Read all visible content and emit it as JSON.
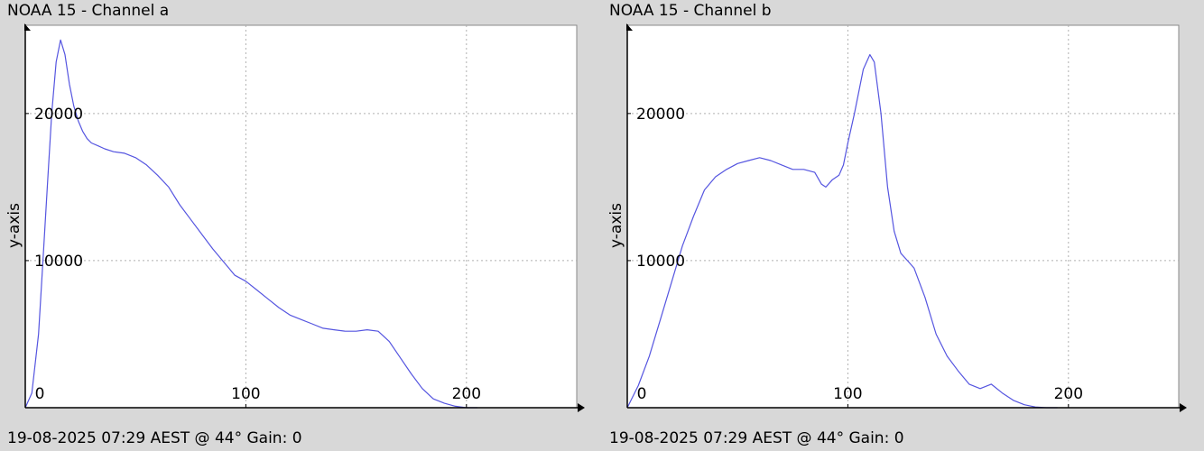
{
  "chart_data": [
    {
      "type": "line",
      "title": "NOAA 15 - Channel a",
      "footer": "19-08-2025 07:29 AEST @ 44° Gain: 0",
      "ylabel": "y-axis",
      "xlim": [
        0,
        250
      ],
      "ylim": [
        0,
        26000
      ],
      "xticks": [
        0,
        100,
        200
      ],
      "yticks": [
        10000,
        20000
      ],
      "xtick_labels": [
        "0",
        "100",
        "200"
      ],
      "ytick_labels": [
        "10000",
        "20000"
      ],
      "grid": true,
      "line_color": "#5555e0",
      "series": [
        {
          "x": [
            0,
            3,
            6,
            8,
            10,
            12,
            14,
            16,
            18,
            20,
            22,
            24,
            26,
            28,
            30,
            33,
            36,
            40,
            45,
            50,
            55,
            60,
            65,
            70,
            75,
            80,
            85,
            90,
            95,
            100,
            105,
            110,
            115,
            120,
            125,
            130,
            135,
            140,
            145,
            150,
            155,
            160,
            165,
            170,
            175,
            180,
            185,
            190,
            195,
            200,
            205
          ],
          "y": [
            0,
            1000,
            5000,
            10000,
            15000,
            20000,
            23500,
            25000,
            24000,
            22000,
            20500,
            19500,
            18800,
            18300,
            18000,
            17800,
            17600,
            17400,
            17300,
            17000,
            16500,
            15800,
            15000,
            13800,
            12800,
            11800,
            10800,
            9900,
            9000,
            8600,
            8000,
            7400,
            6800,
            6300,
            6000,
            5700,
            5400,
            5300,
            5200,
            5200,
            5300,
            5200,
            4500,
            3400,
            2300,
            1300,
            600,
            300,
            100,
            0,
            0
          ]
        }
      ]
    },
    {
      "type": "line",
      "title": "NOAA 15 - Channel b",
      "footer": "19-08-2025 07:29 AEST @ 44° Gain: 0",
      "ylabel": "y-axis",
      "xlim": [
        0,
        250
      ],
      "ylim": [
        0,
        26000
      ],
      "xticks": [
        0,
        100,
        200
      ],
      "yticks": [
        10000,
        20000
      ],
      "xtick_labels": [
        "0",
        "100",
        "200"
      ],
      "ytick_labels": [
        "10000",
        "20000"
      ],
      "grid": true,
      "line_color": "#5555e0",
      "series": [
        {
          "x": [
            0,
            5,
            10,
            15,
            20,
            25,
            30,
            35,
            40,
            45,
            50,
            55,
            60,
            65,
            70,
            75,
            80,
            85,
            88,
            90,
            93,
            96,
            98,
            100,
            103,
            105,
            107,
            110,
            112,
            115,
            118,
            121,
            124,
            127,
            130,
            135,
            140,
            145,
            150,
            155,
            160,
            165,
            170,
            175,
            180,
            185,
            190,
            195
          ],
          "y": [
            0,
            1500,
            3500,
            6000,
            8500,
            11000,
            13000,
            14800,
            15700,
            16200,
            16600,
            16800,
            17000,
            16800,
            16500,
            16200,
            16200,
            16000,
            15200,
            15000,
            15500,
            15800,
            16500,
            18000,
            20000,
            21500,
            23000,
            24000,
            23500,
            20000,
            15000,
            12000,
            10500,
            10000,
            9500,
            7500,
            5000,
            3500,
            2500,
            1600,
            1300,
            1600,
            1000,
            500,
            200,
            50,
            0,
            0
          ]
        }
      ]
    }
  ]
}
